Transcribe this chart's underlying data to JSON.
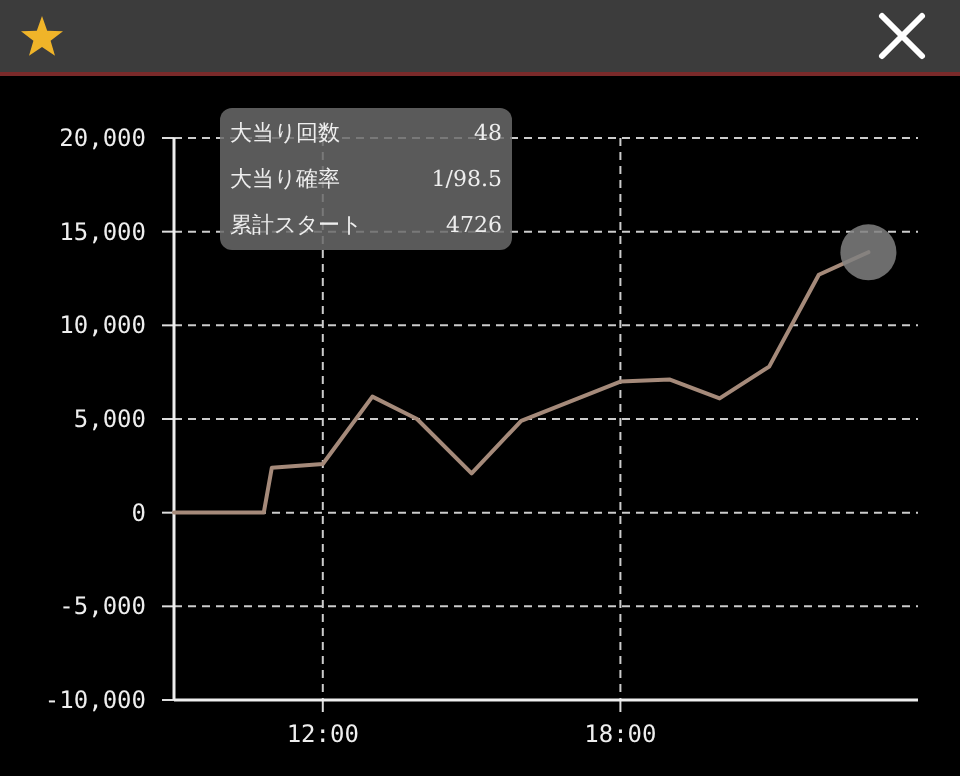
{
  "chart_data": {
    "type": "line",
    "x": [
      9,
      10.81,
      10.97,
      12.0,
      13.0,
      13.9,
      15.0,
      16.0,
      18.0,
      19.0,
      20.0,
      21.0,
      22.0,
      23.0
    ],
    "series": [
      {
        "type": "line",
        "color": "#a58a7a",
        "values": [
          0,
          0,
          2400,
          2600,
          6200,
          5000,
          2100,
          4900,
          7000,
          7100,
          6100,
          7800,
          12700,
          13900
        ]
      },
      {
        "type": "scatter",
        "color": "#808080",
        "marker": "circle",
        "x": [
          23.0
        ],
        "values": [
          13900
        ]
      }
    ],
    "xlim": [
      9,
      24
    ],
    "xticks": [
      {
        "value": 12,
        "label": "12:00"
      },
      {
        "value": 18,
        "label": "18:00"
      }
    ],
    "ylim": [
      -10000,
      20000
    ],
    "yticks": [
      {
        "value": -10000,
        "label": "-10,000"
      },
      {
        "value": -5000,
        "label": "-5,000"
      },
      0,
      {
        "value": 5000,
        "label": "5,000"
      },
      {
        "value": 10000,
        "label": "10,000"
      },
      {
        "value": 15000,
        "label": "15,000"
      },
      {
        "value": 20000,
        "label": "20,000"
      }
    ],
    "grid": true,
    "line_style": "solid",
    "annotations": [
      "大当り回数 48",
      "大当り確率 1/98.5",
      "累計スタート 4726"
    ]
  }
}
